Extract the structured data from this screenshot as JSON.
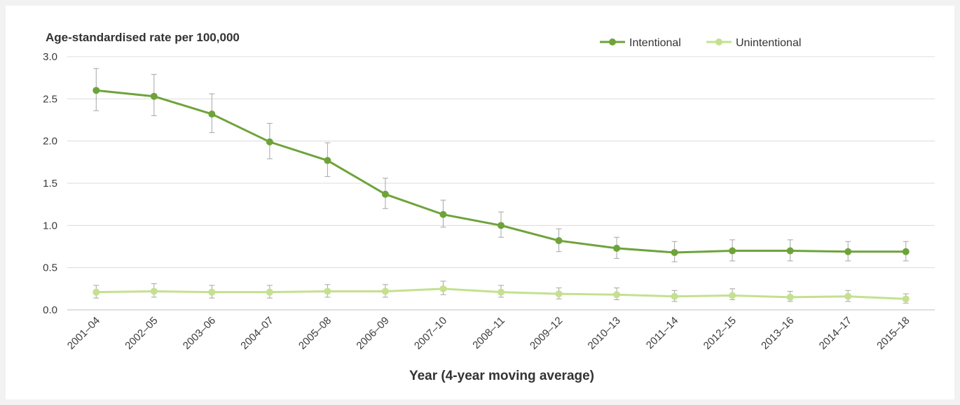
{
  "chart_data": {
    "type": "line",
    "ylabel": "Age-standardised rate per 100,000",
    "xlabel": "Year (4-year moving average)",
    "ylim": [
      0,
      3
    ],
    "yticks": [
      "0.0",
      "0.5",
      "1.0",
      "1.5",
      "2.0",
      "2.5",
      "3.0"
    ],
    "categories": [
      "2001–04",
      "2002–05",
      "2003–06",
      "2004–07",
      "2005–08",
      "2006–09",
      "2007–10",
      "2008–11",
      "2009–12",
      "2010–13",
      "2011–14",
      "2012–15",
      "2013–16",
      "2014–17",
      "2015–18"
    ],
    "grid": true,
    "legend_position": "top-right",
    "series": [
      {
        "name": "Intentional",
        "color": "#6ea33a",
        "values": [
          2.6,
          2.53,
          2.32,
          1.99,
          1.77,
          1.37,
          1.13,
          1.0,
          0.82,
          0.73,
          0.68,
          0.7,
          0.7,
          0.69,
          0.69
        ],
        "error_low": [
          2.36,
          2.3,
          2.1,
          1.79,
          1.58,
          1.2,
          0.98,
          0.86,
          0.69,
          0.61,
          0.57,
          0.58,
          0.58,
          0.58,
          0.58
        ],
        "error_high": [
          2.86,
          2.79,
          2.56,
          2.21,
          1.98,
          1.56,
          1.3,
          1.16,
          0.96,
          0.86,
          0.81,
          0.83,
          0.83,
          0.81,
          0.81
        ]
      },
      {
        "name": "Unintentional",
        "color": "#c5e08f",
        "values": [
          0.21,
          0.22,
          0.21,
          0.21,
          0.22,
          0.22,
          0.25,
          0.21,
          0.19,
          0.18,
          0.16,
          0.17,
          0.15,
          0.16,
          0.13
        ],
        "error_low": [
          0.14,
          0.15,
          0.14,
          0.14,
          0.15,
          0.15,
          0.18,
          0.15,
          0.13,
          0.12,
          0.1,
          0.12,
          0.1,
          0.1,
          0.08
        ],
        "error_high": [
          0.29,
          0.31,
          0.29,
          0.29,
          0.3,
          0.3,
          0.34,
          0.29,
          0.26,
          0.26,
          0.23,
          0.25,
          0.22,
          0.23,
          0.19
        ]
      }
    ]
  }
}
